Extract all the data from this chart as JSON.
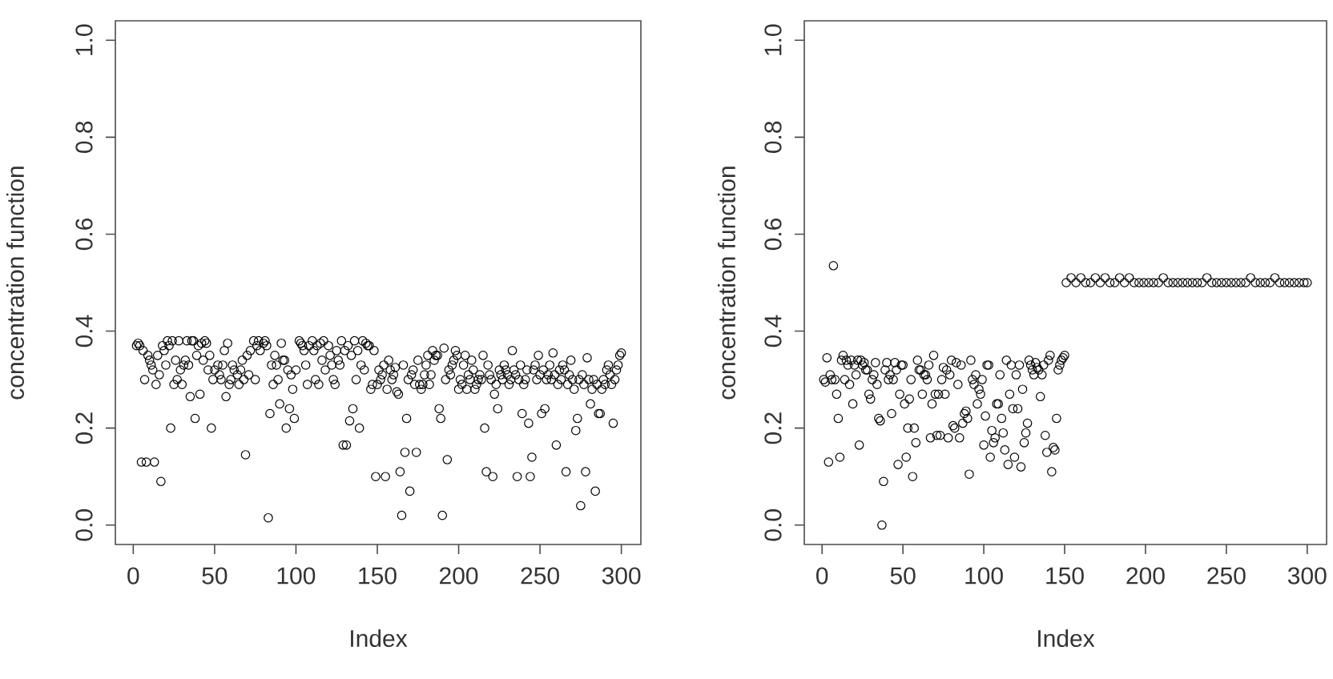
{
  "chart_data": [
    {
      "type": "scatter",
      "xlabel": "Index",
      "ylabel": "concentration function",
      "marker": "circle",
      "color": "#000000",
      "xlim": [
        -11,
        312
      ],
      "ylim": [
        -0.04,
        1.04
      ],
      "xticks": [
        0,
        50,
        100,
        150,
        200,
        250,
        300
      ],
      "yticks": [
        {
          "value": 0,
          "label": "0.0"
        },
        {
          "value": 0.2,
          "label": "0.2"
        },
        {
          "value": 0.4,
          "label": "0.4"
        },
        {
          "value": 0.6,
          "label": "0.6"
        },
        {
          "value": 0.8,
          "label": "0.8"
        },
        {
          "value": 1,
          "label": "1.0"
        }
      ],
      "x": [
        5,
        8,
        13,
        17,
        23,
        30,
        35,
        38,
        41,
        48,
        57,
        69,
        83,
        84,
        86,
        90,
        94,
        96,
        99,
        129,
        131,
        133,
        135,
        137,
        139,
        149,
        155,
        164,
        165,
        167,
        168,
        170,
        174,
        188,
        189,
        190,
        193,
        216,
        217,
        221,
        224,
        236,
        239,
        243,
        244,
        245,
        251,
        253,
        260,
        266,
        272,
        273,
        275,
        278,
        281,
        284,
        286,
        287,
        295,
        2,
        3,
        4,
        6,
        7,
        9,
        10,
        11,
        12,
        14,
        15,
        16,
        18,
        19,
        20,
        21,
        22,
        24,
        25,
        26,
        27,
        28,
        29,
        31,
        32,
        33,
        34,
        36,
        37,
        39,
        40,
        42,
        43,
        44,
        45,
        46,
        47,
        49,
        50,
        52,
        53,
        54,
        55,
        56,
        58,
        59,
        60,
        61,
        62,
        64,
        65,
        66,
        67,
        68,
        70,
        71,
        72,
        74,
        75,
        76,
        77,
        78,
        80,
        81,
        82,
        85,
        87,
        88,
        89,
        91,
        92,
        93,
        95,
        97,
        98,
        100,
        102,
        103,
        104,
        105,
        106,
        107,
        108,
        110,
        111,
        112,
        113,
        114,
        115,
        116,
        117,
        118,
        120,
        121,
        122,
        123,
        124,
        125,
        126,
        127,
        128,
        130,
        132,
        134,
        136,
        138,
        140,
        141,
        142,
        143,
        144,
        145,
        146,
        147,
        148,
        150,
        151,
        152,
        153,
        154,
        156,
        157,
        158,
        159,
        160,
        161,
        162,
        163,
        166,
        169,
        171,
        172,
        173,
        175,
        176,
        177,
        178,
        179,
        180,
        181,
        182,
        183,
        184,
        185,
        186,
        187,
        191,
        192,
        194,
        195,
        196,
        197,
        198,
        199,
        200,
        201,
        202,
        203,
        204,
        205,
        206,
        207,
        208,
        209,
        210,
        211,
        212,
        213,
        214,
        215,
        218,
        219,
        220,
        222,
        223,
        225,
        226,
        227,
        228,
        229,
        230,
        231,
        232,
        233,
        234,
        235,
        237,
        238,
        240,
        241,
        242,
        246,
        247,
        248,
        249,
        250,
        252,
        254,
        255,
        256,
        257,
        258,
        259,
        261,
        262,
        263,
        264,
        265,
        267,
        268,
        269,
        270,
        271,
        274,
        276,
        277,
        279,
        280,
        282,
        283,
        285,
        288,
        289,
        290,
        291,
        292,
        293,
        294,
        296,
        297,
        298,
        299,
        300
      ],
      "values": [
        0.13,
        0.13,
        0.13,
        0.09,
        0.2,
        0.29,
        0.265,
        0.22,
        0.27,
        0.2,
        0.265,
        0.145,
        0.015,
        0.23,
        0.29,
        0.25,
        0.2,
        0.24,
        0.22,
        0.165,
        0.165,
        0.215,
        0.24,
        0.3,
        0.2,
        0.1,
        0.1,
        0.11,
        0.02,
        0.15,
        0.22,
        0.07,
        0.15,
        0.24,
        0.22,
        0.02,
        0.135,
        0.2,
        0.11,
        0.1,
        0.24,
        0.1,
        0.23,
        0.21,
        0.1,
        0.14,
        0.23,
        0.24,
        0.165,
        0.11,
        0.195,
        0.22,
        0.04,
        0.11,
        0.25,
        0.07,
        0.23,
        0.23,
        0.21,
        0.37,
        0.375,
        0.37,
        0.36,
        0.3,
        0.35,
        0.34,
        0.33,
        0.32,
        0.29,
        0.35,
        0.31,
        0.37,
        0.36,
        0.33,
        0.38,
        0.37,
        0.38,
        0.29,
        0.34,
        0.3,
        0.38,
        0.32,
        0.33,
        0.34,
        0.38,
        0.33,
        0.38,
        0.38,
        0.35,
        0.37,
        0.375,
        0.34,
        0.38,
        0.375,
        0.32,
        0.35,
        0.3,
        0.32,
        0.33,
        0.31,
        0.3,
        0.33,
        0.36,
        0.375,
        0.29,
        0.3,
        0.33,
        0.32,
        0.31,
        0.29,
        0.32,
        0.34,
        0.3,
        0.35,
        0.31,
        0.36,
        0.38,
        0.3,
        0.37,
        0.38,
        0.36,
        0.375,
        0.38,
        0.37,
        0.33,
        0.35,
        0.33,
        0.3,
        0.375,
        0.34,
        0.34,
        0.32,
        0.31,
        0.28,
        0.32,
        0.38,
        0.375,
        0.37,
        0.36,
        0.33,
        0.29,
        0.37,
        0.38,
        0.36,
        0.3,
        0.37,
        0.29,
        0.375,
        0.34,
        0.38,
        0.32,
        0.37,
        0.35,
        0.33,
        0.3,
        0.29,
        0.36,
        0.34,
        0.33,
        0.38,
        0.36,
        0.37,
        0.35,
        0.38,
        0.36,
        0.33,
        0.38,
        0.32,
        0.375,
        0.37,
        0.37,
        0.28,
        0.29,
        0.36,
        0.29,
        0.32,
        0.3,
        0.31,
        0.33,
        0.28,
        0.34,
        0.32,
        0.3,
        0.31,
        0.325,
        0.275,
        0.27,
        0.33,
        0.3,
        0.31,
        0.32,
        0.29,
        0.34,
        0.29,
        0.28,
        0.29,
        0.31,
        0.33,
        0.35,
        0.29,
        0.31,
        0.36,
        0.34,
        0.35,
        0.35,
        0.365,
        0.3,
        0.32,
        0.31,
        0.33,
        0.34,
        0.36,
        0.35,
        0.28,
        0.3,
        0.29,
        0.33,
        0.35,
        0.28,
        0.31,
        0.3,
        0.34,
        0.32,
        0.28,
        0.29,
        0.3,
        0.31,
        0.3,
        0.35,
        0.33,
        0.31,
        0.3,
        0.27,
        0.29,
        0.32,
        0.31,
        0.3,
        0.33,
        0.32,
        0.31,
        0.29,
        0.3,
        0.36,
        0.32,
        0.31,
        0.3,
        0.33,
        0.29,
        0.3,
        0.32,
        0.32,
        0.33,
        0.3,
        0.35,
        0.31,
        0.32,
        0.3,
        0.31,
        0.33,
        0.3,
        0.355,
        0.31,
        0.29,
        0.32,
        0.3,
        0.33,
        0.32,
        0.29,
        0.31,
        0.34,
        0.3,
        0.28,
        0.3,
        0.31,
        0.29,
        0.345,
        0.3,
        0.28,
        0.3,
        0.29,
        0.28,
        0.3,
        0.29,
        0.32,
        0.33,
        0.31,
        0.29,
        0.3,
        0.32,
        0.33,
        0.35,
        0.355
      ]
    },
    {
      "type": "scatter",
      "xlabel": "Index",
      "ylabel": "concentration function",
      "marker": "circle",
      "color": "#000000",
      "xlim": [
        -11,
        312
      ],
      "ylim": [
        -0.04,
        1.04
      ],
      "xticks": [
        0,
        50,
        100,
        150,
        200,
        250,
        300
      ],
      "yticks": [
        {
          "value": 0,
          "label": "0.0"
        },
        {
          "value": 0.2,
          "label": "0.2"
        },
        {
          "value": 0.4,
          "label": "0.4"
        },
        {
          "value": 0.6,
          "label": "0.6"
        },
        {
          "value": 0.8,
          "label": "0.8"
        },
        {
          "value": 1,
          "label": "1.0"
        }
      ],
      "x": [
        1,
        2,
        3,
        4,
        5,
        6,
        7,
        8,
        9,
        10,
        11,
        12,
        13,
        14,
        15,
        16,
        17,
        18,
        19,
        20,
        21,
        22,
        23,
        24,
        25,
        26,
        27,
        28,
        29,
        30,
        31,
        32,
        33,
        34,
        35,
        36,
        37,
        38,
        39,
        40,
        41,
        42,
        43,
        44,
        45,
        46,
        47,
        48,
        49,
        50,
        51,
        52,
        53,
        54,
        55,
        56,
        57,
        58,
        59,
        60,
        61,
        62,
        63,
        64,
        65,
        66,
        67,
        68,
        69,
        70,
        71,
        72,
        73,
        74,
        75,
        76,
        77,
        78,
        79,
        80,
        81,
        82,
        83,
        84,
        85,
        86,
        87,
        88,
        89,
        90,
        91,
        92,
        93,
        94,
        95,
        96,
        97,
        98,
        99,
        100,
        101,
        102,
        103,
        104,
        105,
        106,
        107,
        108,
        109,
        110,
        111,
        112,
        113,
        114,
        115,
        116,
        117,
        118,
        119,
        120,
        121,
        122,
        123,
        124,
        125,
        126,
        127,
        128,
        129,
        130,
        131,
        132,
        133,
        134,
        135,
        136,
        137,
        138,
        139,
        140,
        141,
        142,
        143,
        144,
        145,
        146,
        147,
        148,
        149,
        150,
        151,
        154,
        157,
        160,
        163,
        166,
        169,
        172,
        175,
        178,
        181,
        184,
        187,
        190,
        193,
        196,
        199,
        202,
        205,
        208,
        211,
        214,
        217,
        220,
        223,
        226,
        229,
        232,
        235,
        238,
        241,
        244,
        247,
        250,
        253,
        256,
        259,
        262,
        265,
        268,
        271,
        274,
        277,
        280,
        283,
        286,
        289,
        292,
        295,
        298,
        300
      ],
      "values": [
        0.3,
        0.295,
        0.345,
        0.13,
        0.31,
        0.3,
        0.535,
        0.3,
        0.27,
        0.22,
        0.14,
        0.34,
        0.35,
        0.3,
        0.34,
        0.33,
        0.29,
        0.34,
        0.25,
        0.33,
        0.31,
        0.34,
        0.165,
        0.34,
        0.33,
        0.335,
        0.32,
        0.32,
        0.27,
        0.26,
        0.3,
        0.31,
        0.335,
        0.29,
        0.22,
        0.215,
        0.0,
        0.09,
        0.32,
        0.335,
        0.3,
        0.31,
        0.23,
        0.3,
        0.335,
        0.32,
        0.125,
        0.27,
        0.33,
        0.33,
        0.25,
        0.14,
        0.2,
        0.26,
        0.3,
        0.1,
        0.2,
        0.17,
        0.34,
        0.32,
        0.32,
        0.27,
        0.31,
        0.31,
        0.3,
        0.33,
        0.18,
        0.25,
        0.35,
        0.27,
        0.185,
        0.27,
        0.185,
        0.3,
        0.325,
        0.27,
        0.32,
        0.18,
        0.31,
        0.34,
        0.205,
        0.2,
        0.335,
        0.29,
        0.18,
        0.33,
        0.21,
        0.23,
        0.235,
        0.22,
        0.105,
        0.34,
        0.3,
        0.29,
        0.31,
        0.25,
        0.28,
        0.27,
        0.3,
        0.165,
        0.225,
        0.33,
        0.33,
        0.14,
        0.195,
        0.17,
        0.18,
        0.25,
        0.25,
        0.31,
        0.22,
        0.19,
        0.155,
        0.34,
        0.125,
        0.27,
        0.33,
        0.24,
        0.14,
        0.31,
        0.24,
        0.33,
        0.12,
        0.28,
        0.17,
        0.19,
        0.21,
        0.34,
        0.33,
        0.32,
        0.31,
        0.335,
        0.325,
        0.32,
        0.265,
        0.31,
        0.33,
        0.185,
        0.15,
        0.34,
        0.35,
        0.11,
        0.16,
        0.155,
        0.22,
        0.32,
        0.33,
        0.34,
        0.345,
        0.35,
        0.5,
        0.51,
        0.5,
        0.51,
        0.5,
        0.5,
        0.51,
        0.5,
        0.51,
        0.5,
        0.5,
        0.51,
        0.5,
        0.51,
        0.5,
        0.5,
        0.5,
        0.5,
        0.5,
        0.5,
        0.51,
        0.5,
        0.5,
        0.5,
        0.5,
        0.5,
        0.5,
        0.5,
        0.5,
        0.51,
        0.5,
        0.5,
        0.5,
        0.5,
        0.5,
        0.5,
        0.5,
        0.5,
        0.51,
        0.5,
        0.5,
        0.5,
        0.5,
        0.51,
        0.5,
        0.5,
        0.5,
        0.5,
        0.5,
        0.5,
        0.5
      ]
    }
  ]
}
